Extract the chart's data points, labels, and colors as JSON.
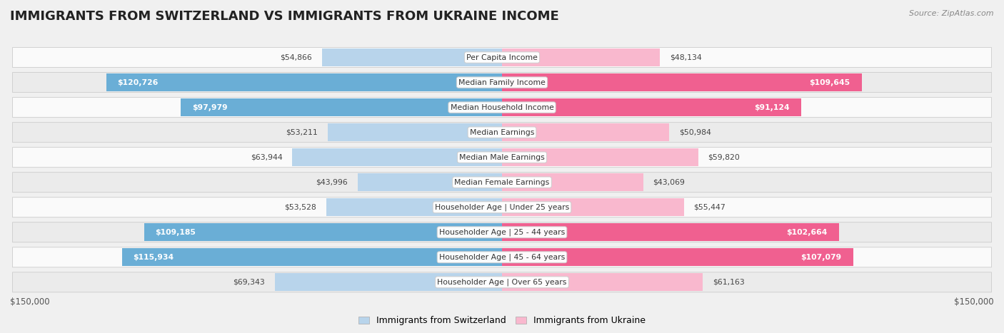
{
  "title": "IMMIGRANTS FROM SWITZERLAND VS IMMIGRANTS FROM UKRAINE INCOME",
  "source": "Source: ZipAtlas.com",
  "categories": [
    "Per Capita Income",
    "Median Family Income",
    "Median Household Income",
    "Median Earnings",
    "Median Male Earnings",
    "Median Female Earnings",
    "Householder Age | Under 25 years",
    "Householder Age | 25 - 44 years",
    "Householder Age | 45 - 64 years",
    "Householder Age | Over 65 years"
  ],
  "switzerland_values": [
    54866,
    120726,
    97979,
    53211,
    63944,
    43996,
    53528,
    109185,
    115934,
    69343
  ],
  "ukraine_values": [
    48134,
    109645,
    91124,
    50984,
    59820,
    43069,
    55447,
    102664,
    107079,
    61163
  ],
  "switzerland_color_light": "#b8d4eb",
  "switzerland_color_dark": "#6aaed6",
  "ukraine_color_light": "#f9b8ce",
  "ukraine_color_dark": "#f06090",
  "max_value": 150000,
  "background_color": "#f0f0f0",
  "row_bg_odd": "#fafafa",
  "row_bg_even": "#ebebeb",
  "title_fontsize": 13,
  "tick_label": "$150,000",
  "legend_switzerland": "Immigrants from Switzerland",
  "legend_ukraine": "Immigrants from Ukraine",
  "sw_inside_threshold": 75000,
  "uk_inside_threshold": 75000
}
